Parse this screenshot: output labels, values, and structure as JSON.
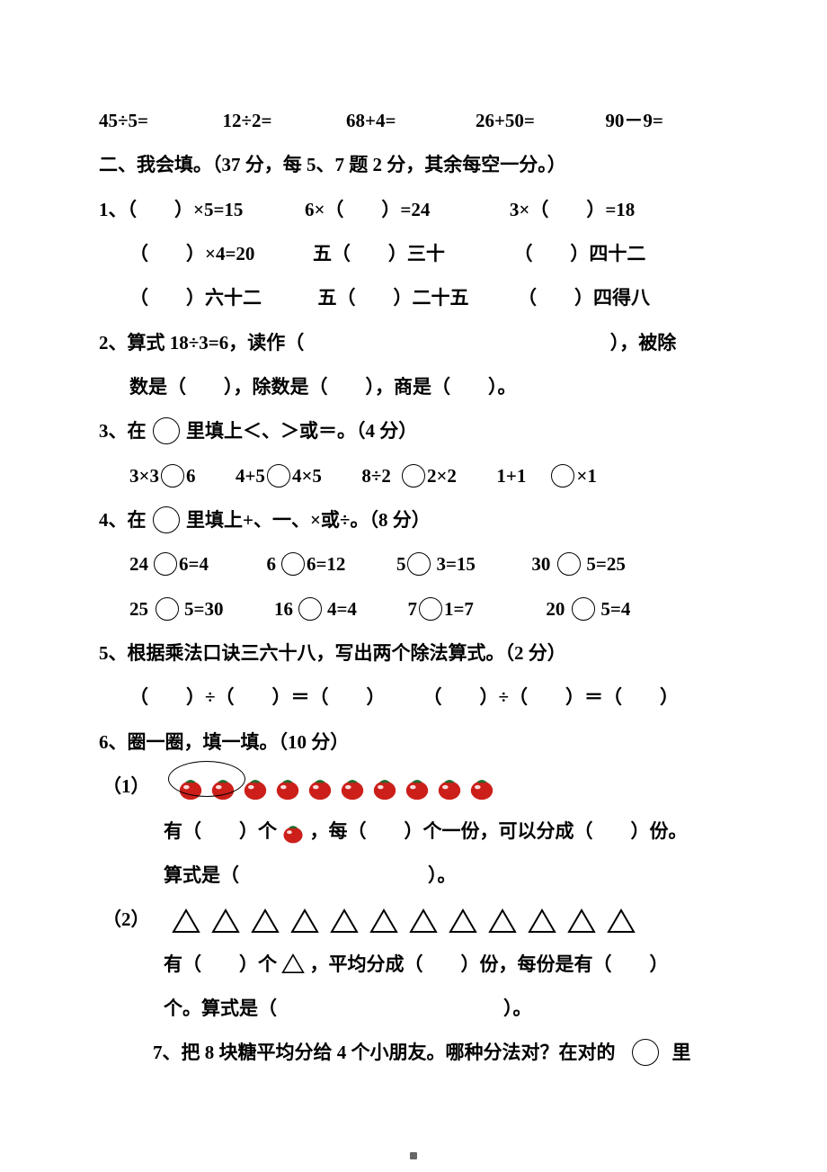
{
  "colors": {
    "text": "#000000",
    "bg": "#ffffff",
    "tomato_body": "#cc1f1a",
    "tomato_highlight": "#ffffff",
    "tomato_leaf": "#1f6b2d",
    "tri_stroke": "#000000"
  },
  "row_equations": {
    "e1": "45÷5=",
    "e2": "12÷2=",
    "e3": "68+4=",
    "e4": "26+50=",
    "e5": "90－9="
  },
  "section2_title": "二、我会填。（37 分，每 5、7 题 2 分，其余每空一分。）",
  "q1": {
    "label": "1、",
    "r1c1a": "（　　）×5=15",
    "r1c2a": "6×（　　）=24",
    "r1c3a": "3×（　　）=18",
    "r2c1": "（　　）×4=20",
    "r2c2": "五（　　）三十",
    "r2c3": "（　　）四十二",
    "r3c1": "（　　）六十二",
    "r3c2": "五（　　）二十五",
    "r3c3": "（　　）四得八"
  },
  "q2": {
    "line1_a": "2、算式 18÷3=6，读作（",
    "line1_b": "），被除",
    "line2": "数是（　　），除数是（　　），商是（　　）。"
  },
  "q3": {
    "title_a": "3、在",
    "title_b": "里填上＜、＞或＝。（4 分）",
    "p1a": "3×3",
    "p1b": "6",
    "p2a": "4+5",
    "p2b": "4×5",
    "p3a": "8÷2",
    "p3b": "2×2",
    "p4a": "1+1",
    "p4b": "×1"
  },
  "q4": {
    "title_a": "4、在",
    "title_b": "里填上+、一、×或÷。（8 分）",
    "r1": {
      "a1": "24",
      "b1": "6=4",
      "a2": "6",
      "b2": "6=12",
      "a3": "5",
      "b3": "3=15",
      "a4": "30",
      "b4": "5=25"
    },
    "r2": {
      "a1": "25",
      "b1": "5=30",
      "a2": "16",
      "b2": "4=4",
      "a3": "7",
      "b3": "1=7",
      "a4": "20",
      "b4": "5=4"
    }
  },
  "q5": {
    "title": "5、根据乘法口诀三六十八，写出两个除法算式。（2 分）",
    "expr": "（　　）÷（　　）＝（　　）　　　（　　）÷（　　）＝（　　）"
  },
  "q6": {
    "title": "6、圈一圈，填一填。（10 分）",
    "p1_label": "（1）",
    "p1_count": 10,
    "p1_line_a": "有（　　）个",
    "p1_line_b": "，每（　　）个一份，可以分成（　　）份。",
    "p1_line2": "算式是（　　　　　　　　　　）。",
    "p2_label": "（2）",
    "p2_count": 12,
    "p2_line_a": "有（　　）个",
    "p2_line_b": "，平均分成（　　）份，每份是有（　　）",
    "p2_line2": "个。算式是（　　　　　　　　　　　　）。"
  },
  "q7": {
    "text_a": "7、把 8 块糖平均分给 4 个小朋友。哪种分法对？在对的",
    "text_b": "里"
  }
}
